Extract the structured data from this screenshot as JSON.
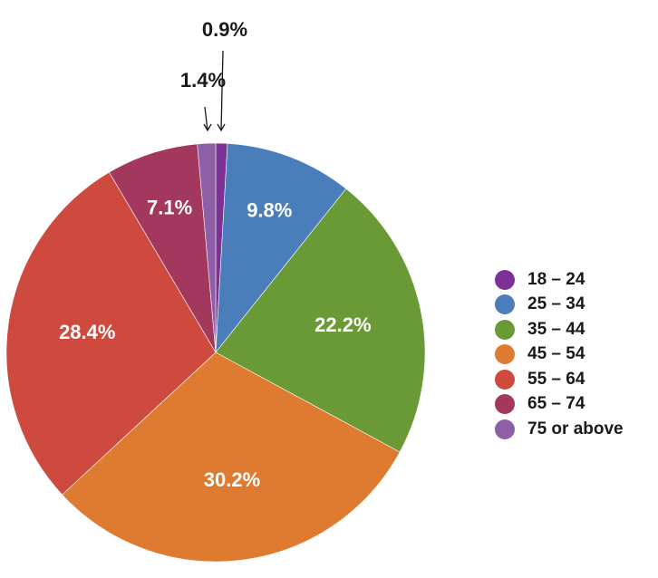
{
  "chart_data": {
    "type": "pie",
    "title": "",
    "categories": [
      "18 – 24",
      "25 – 34",
      "35 – 44",
      "45 – 54",
      "55 – 64",
      "65 – 74",
      "75 or above"
    ],
    "values": [
      0.9,
      9.8,
      22.2,
      30.2,
      28.4,
      7.1,
      1.4
    ],
    "labels": [
      "0.9%",
      "9.8%",
      "22.2%",
      "30.2%",
      "28.4%",
      "7.1%",
      "1.4%"
    ],
    "colors": [
      "#7b3294",
      "#4a7ebb",
      "#6a9a35",
      "#de7b30",
      "#cf4a3e",
      "#a3385f",
      "#8e5ea6"
    ],
    "legend_position": "right",
    "start_angle": "top",
    "direction": "clockwise"
  }
}
